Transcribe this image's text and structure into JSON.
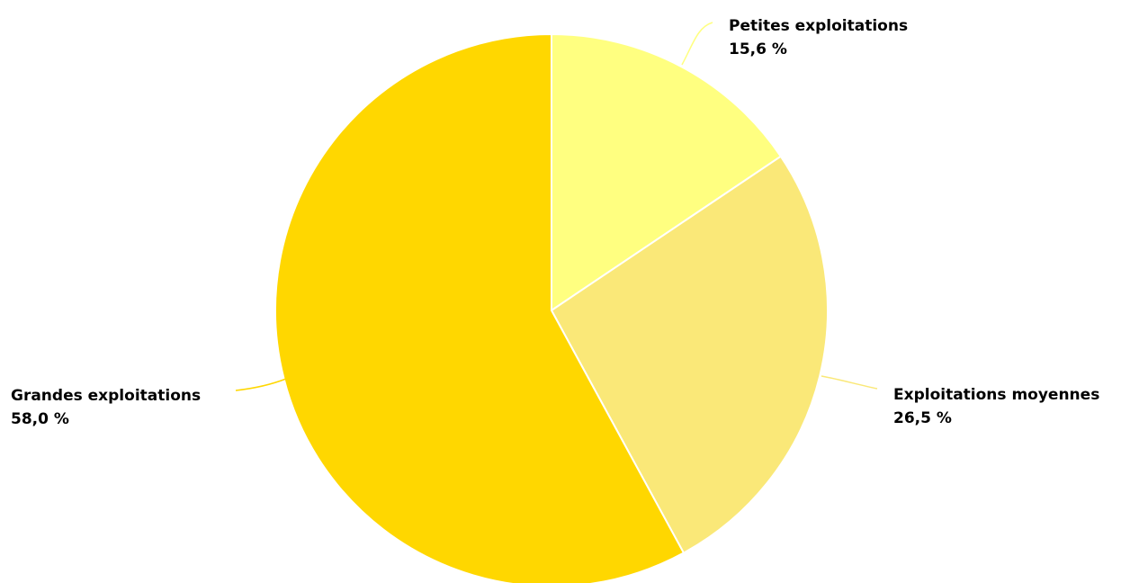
{
  "chart_data": {
    "type": "pie",
    "title": "",
    "slices": [
      {
        "label": "Petites exploitations",
        "value": 15.6,
        "value_label": "15,6 %",
        "color": "#ffff80"
      },
      {
        "label": "Exploitations moyennes",
        "value": 26.5,
        "value_label": "26,5 %",
        "color": "#fae878"
      },
      {
        "label": "Grandes exploitations",
        "value": 58.0,
        "value_label": "58,0 %",
        "color": "#ffd700"
      }
    ],
    "start_angle_deg": 0,
    "direction": "clockwise",
    "legend": "none"
  }
}
